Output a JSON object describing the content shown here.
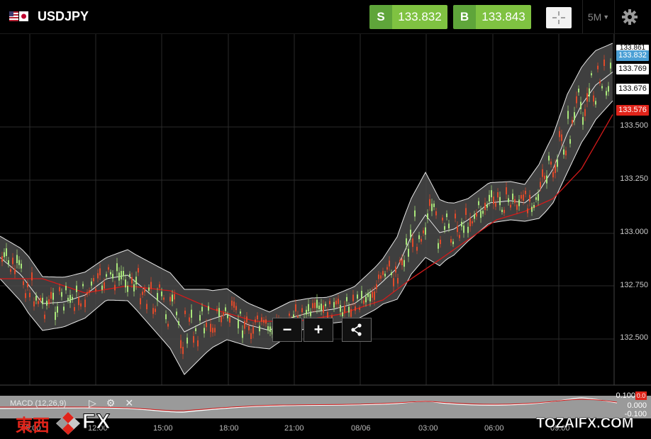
{
  "header": {
    "symbol": "USDJPY",
    "flag_icon": "us-jp-flag-icon",
    "sell": {
      "tag": "S",
      "price": "133.832"
    },
    "buy": {
      "tag": "B",
      "price": "133.843"
    },
    "crosshair_icon": "crosshair-icon",
    "timeframe": "5M",
    "settings_icon": "gear-icon"
  },
  "chart": {
    "y_axis_labels": [
      "133.500",
      "133.250",
      "133.000",
      "132.750",
      "132.500"
    ],
    "price_tags": {
      "top_partial": "133.861",
      "current": "133.832",
      "upper_band": "133.769",
      "middle_band": "133.676",
      "ma": "133.576"
    },
    "x_axis_labels": [
      "09:00",
      "12:00",
      "15:00",
      "18:00",
      "21:00",
      "08/06",
      "03:00",
      "06:00",
      "09:00"
    ],
    "colors": {
      "band_fill": "#4a4a4a",
      "band_line": "#e8e8e8",
      "ma_line": "#d41a1a",
      "candle_up": "#a8e67a",
      "candle_down": "#e04a2a"
    }
  },
  "zoom": {
    "minus": "−",
    "plus": "+",
    "share_icon": "share-icon"
  },
  "macd": {
    "label": "MACD (12,26,9)",
    "values": [
      "0.100",
      "0.000",
      "-0.100"
    ],
    "tag": "0.0"
  },
  "watermarks": {
    "left_kanji": "東西",
    "left_fx": "FX",
    "right": "TOZAIFX.COM"
  }
}
